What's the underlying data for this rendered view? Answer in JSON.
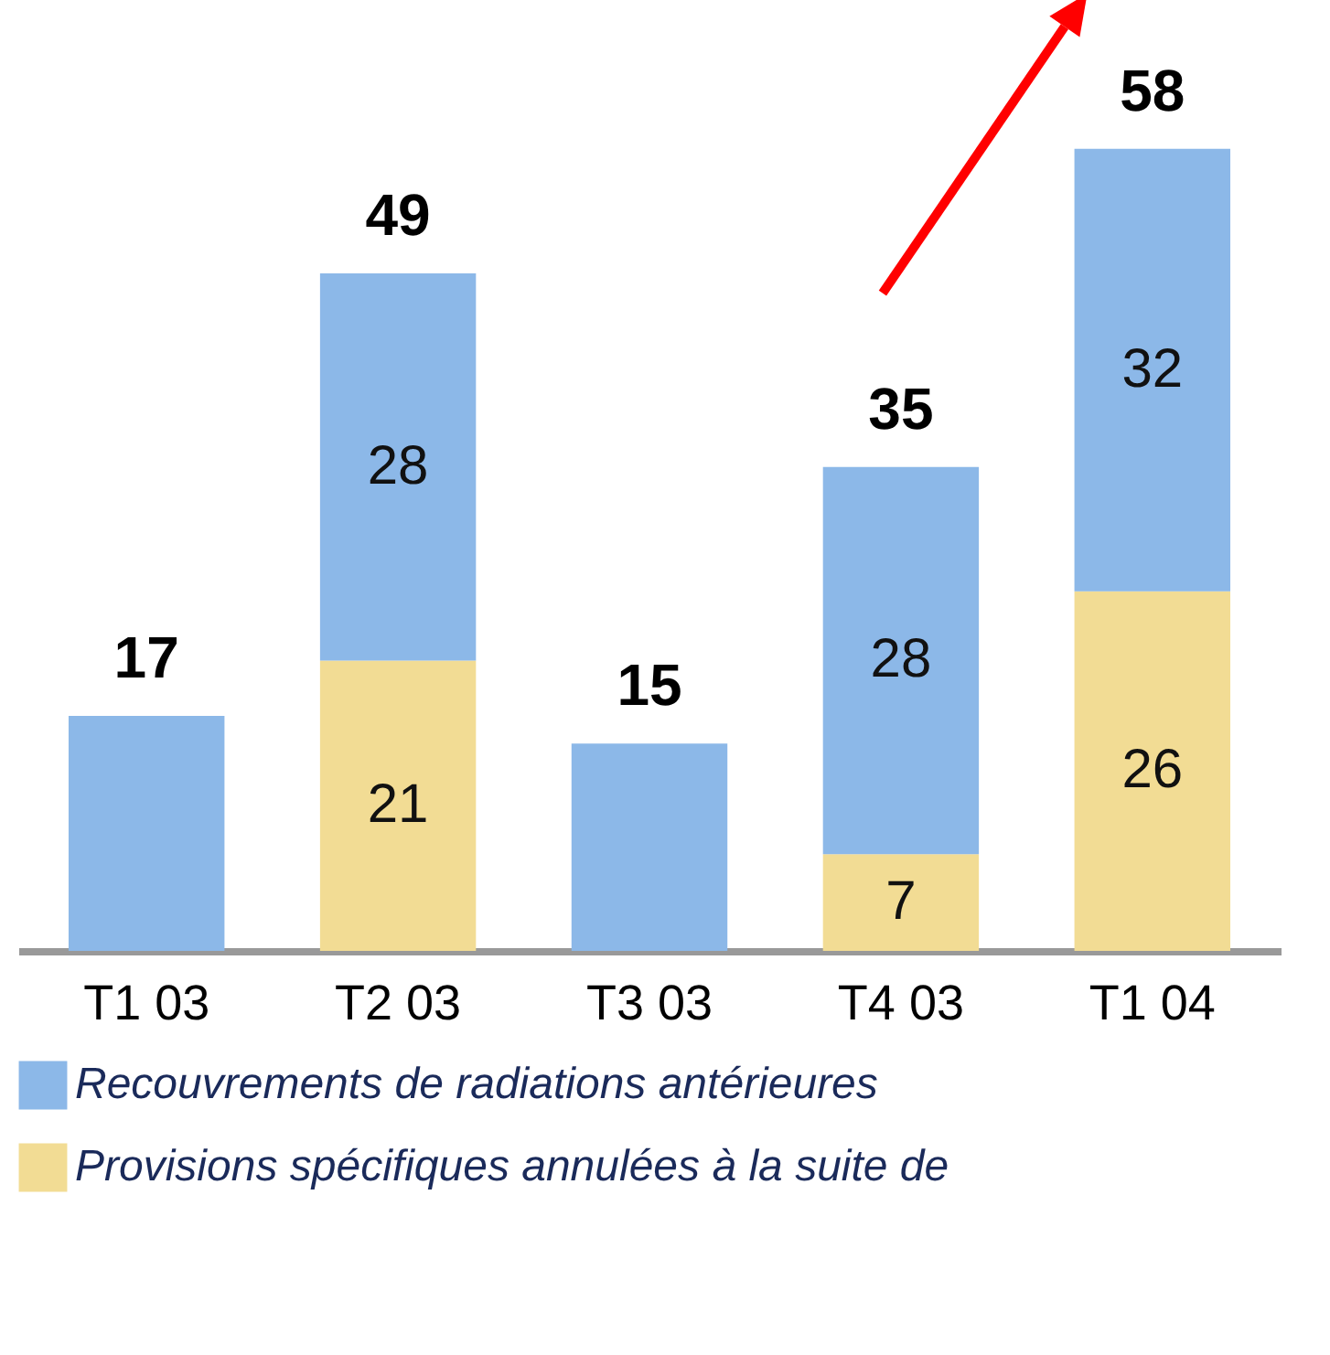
{
  "chart_data": {
    "type": "bar",
    "stacked": true,
    "legend": "bottom",
    "categories": [
      "T1 03",
      "T2 03",
      "T3 03",
      "T4 03",
      "T1 04"
    ],
    "series": [
      {
        "name": "Provisions spécifiques annulées à la suite de",
        "color": "#f2dc94",
        "values": [
          null,
          21,
          null,
          7,
          26
        ],
        "value_labels": [
          null,
          "21",
          null,
          "7",
          "26"
        ]
      },
      {
        "name": "Recouvrements de radiations antérieures",
        "color": "#8cb8e8",
        "values": [
          17,
          28,
          15,
          28,
          32
        ],
        "value_labels": [
          null,
          "28",
          null,
          "28",
          "32"
        ]
      }
    ],
    "totals": [
      "17",
      "49",
      "15",
      "35",
      "58"
    ]
  }
}
